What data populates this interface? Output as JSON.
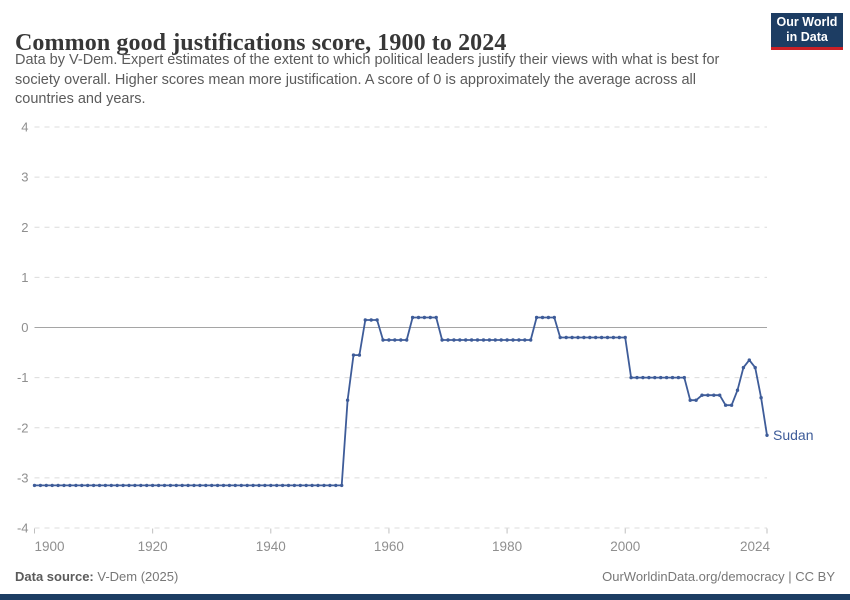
{
  "header": {
    "title": "Common good justifications score, 1900 to 2024",
    "subtitle_lines": [
      "Data by V-Dem. Expert estimates of the extent to which political leaders justify their views with what is best for",
      "society overall. Higher scores mean more justification. A score of 0 is approximately the average across all",
      "countries and years."
    ],
    "logo": {
      "line1": "Our World",
      "line2": "in Data"
    }
  },
  "footer": {
    "source_label": "Data source:",
    "source_value": "V-Dem (2025)",
    "link_text": "OurWorldinData.org/democracy | CC BY"
  },
  "colors": {
    "series_blue": "#3e5c99",
    "grid_gray": "#dcdcdc",
    "zero_line_gray": "#a5a5a5",
    "axis_text_gray": "#8f8f8f",
    "tick_gray": "#bfbfbf",
    "logo_navy": "#1d3d63",
    "logo_red": "#cb2026"
  },
  "chart_data": {
    "type": "line",
    "title": "Common good justifications score, 1900 to 2024",
    "xlabel": "",
    "ylabel": "",
    "entity_label": "Sudan",
    "x_start_year": 1900,
    "x_end_year": 2024,
    "ylim": [
      -4,
      4
    ],
    "yticks": [
      4,
      3,
      2,
      1,
      0,
      -1,
      -2,
      -3,
      -4
    ],
    "xticks": [
      1900,
      1920,
      1940,
      1960,
      1980,
      2000,
      2024
    ],
    "grid": "horizontal-dashed, solid zero line",
    "legend_position": "line-end label",
    "series": [
      {
        "name": "Sudan",
        "values": [
          -3.15,
          -3.15,
          -3.15,
          -3.15,
          -3.15,
          -3.15,
          -3.15,
          -3.15,
          -3.15,
          -3.15,
          -3.15,
          -3.15,
          -3.15,
          -3.15,
          -3.15,
          -3.15,
          -3.15,
          -3.15,
          -3.15,
          -3.15,
          -3.15,
          -3.15,
          -3.15,
          -3.15,
          -3.15,
          -3.15,
          -3.15,
          -3.15,
          -3.15,
          -3.15,
          -3.15,
          -3.15,
          -3.15,
          -3.15,
          -3.15,
          -3.15,
          -3.15,
          -3.15,
          -3.15,
          -3.15,
          -3.15,
          -3.15,
          -3.15,
          -3.15,
          -3.15,
          -3.15,
          -3.15,
          -3.15,
          -3.15,
          -3.15,
          -3.15,
          -3.15,
          -3.15,
          -1.45,
          -0.55,
          -0.55,
          0.15,
          0.15,
          0.15,
          -0.25,
          -0.25,
          -0.25,
          -0.25,
          -0.25,
          0.2,
          0.2,
          0.2,
          0.2,
          0.2,
          -0.25,
          -0.25,
          -0.25,
          -0.25,
          -0.25,
          -0.25,
          -0.25,
          -0.25,
          -0.25,
          -0.25,
          -0.25,
          -0.25,
          -0.25,
          -0.25,
          -0.25,
          -0.25,
          0.2,
          0.2,
          0.2,
          0.2,
          -0.2,
          -0.2,
          -0.2,
          -0.2,
          -0.2,
          -0.2,
          -0.2,
          -0.2,
          -0.2,
          -0.2,
          -0.2,
          -0.2,
          -1.0,
          -1.0,
          -1.0,
          -1.0,
          -1.0,
          -1.0,
          -1.0,
          -1.0,
          -1.0,
          -1.0,
          -1.45,
          -1.45,
          -1.35,
          -1.35,
          -1.35,
          -1.35,
          -1.55,
          -1.55,
          -1.25,
          -0.8,
          -0.65,
          -0.8,
          -1.4,
          -2.15
        ]
      }
    ]
  }
}
